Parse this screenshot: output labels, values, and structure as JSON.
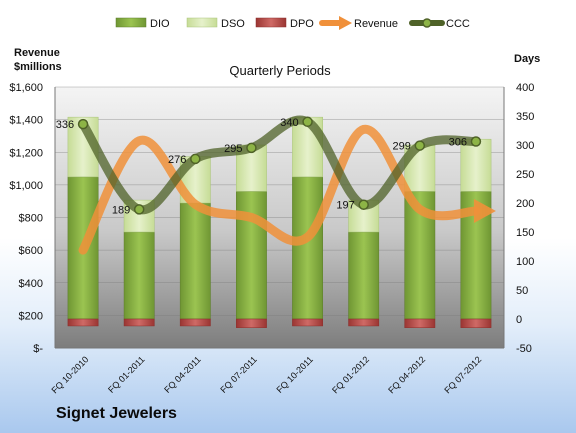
{
  "company": "Signet Jewelers",
  "chart_data": {
    "type": "bar",
    "title": "Quarterly Periods",
    "left_axis_title_line1": "Revenue",
    "left_axis_title_line2": "$millions",
    "right_axis_title": "Days",
    "categories": [
      "FQ 10-2010",
      "FQ 01-2011",
      "FQ 04-2011",
      "FQ 07-2011",
      "FQ 10-2011",
      "FQ 01-2012",
      "FQ 04-2012",
      "FQ 07-2012"
    ],
    "left_ylim": [
      0,
      1600
    ],
    "left_ticks": [
      0,
      200,
      400,
      600,
      800,
      1000,
      1200,
      1400,
      1600
    ],
    "left_tick_labels": [
      "$-",
      "$200",
      "$400",
      "$600",
      "$800",
      "$1,000",
      "$1,200",
      "$1,400",
      "$1,600"
    ],
    "right_ylim": [
      -50,
      400
    ],
    "right_ticks": [
      -50,
      0,
      50,
      100,
      150,
      200,
      250,
      300,
      350,
      400
    ],
    "grid": true,
    "legend_position": "top",
    "series": [
      {
        "name": "DIO",
        "type": "stacked-bar",
        "axis": "right",
        "color": "#8db446",
        "values": [
          245,
          150,
          200,
          220,
          245,
          150,
          220,
          220
        ]
      },
      {
        "name": "DSO",
        "type": "stacked-bar",
        "axis": "right",
        "color": "#d7e8b0",
        "values": [
          103,
          55,
          80,
          80,
          103,
          55,
          80,
          90
        ]
      },
      {
        "name": "DPO",
        "type": "negative-bar",
        "axis": "right",
        "color": "#c0504d",
        "values": [
          -12,
          -12,
          -12,
          -15,
          -12,
          -12,
          -15,
          -15
        ]
      },
      {
        "name": "Revenue",
        "type": "smooth-line",
        "axis": "left",
        "color": "#f0903a",
        "values": [
          600,
          1270,
          880,
          800,
          680,
          1340,
          850,
          840
        ]
      },
      {
        "name": "CCC",
        "type": "smooth-line",
        "axis": "right",
        "color": "#4f6228",
        "values": [
          336,
          189,
          276,
          295,
          340,
          197,
          299,
          306
        ]
      }
    ]
  }
}
